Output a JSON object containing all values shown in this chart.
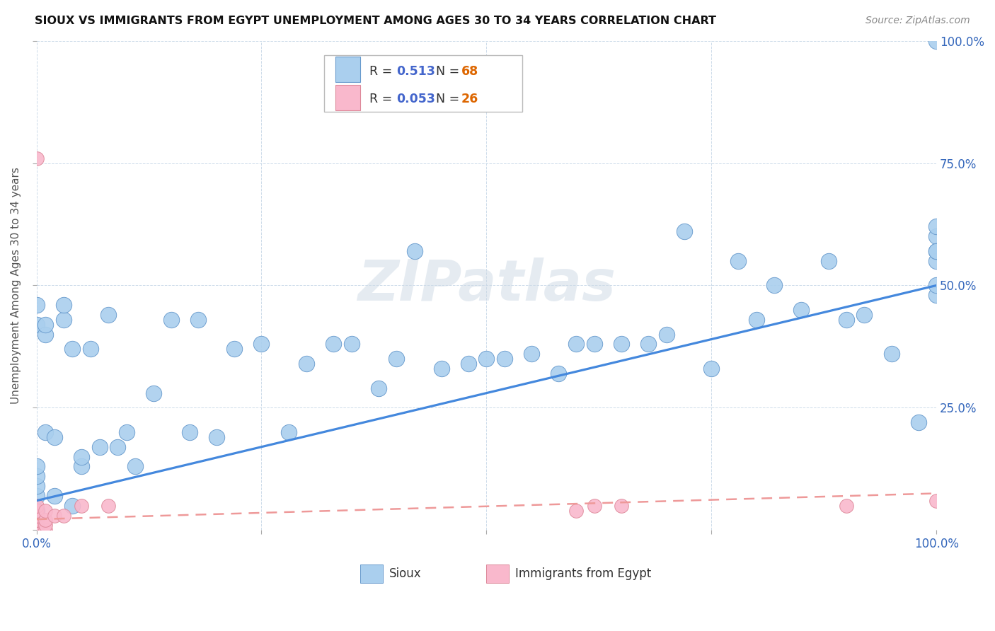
{
  "title": "SIOUX VS IMMIGRANTS FROM EGYPT UNEMPLOYMENT AMONG AGES 30 TO 34 YEARS CORRELATION CHART",
  "source": "Source: ZipAtlas.com",
  "ylabel": "Unemployment Among Ages 30 to 34 years",
  "legend_label1": "Sioux",
  "legend_label2": "Immigrants from Egypt",
  "r1": "0.513",
  "n1": "68",
  "r2": "0.053",
  "n2": "26",
  "watermark": "ZIPatlas",
  "sioux_color": "#aacfee",
  "egypt_color": "#f9b8cc",
  "sioux_edge_color": "#6699cc",
  "egypt_edge_color": "#dd8899",
  "sioux_line_color": "#4488dd",
  "egypt_line_color": "#ee9999",
  "r_text_color": "#4466cc",
  "n_text_color": "#dd6600",
  "sioux_x": [
    0.0,
    0.0,
    0.0,
    0.0,
    0.0,
    0.0,
    0.0,
    0.01,
    0.01,
    0.01,
    0.02,
    0.02,
    0.03,
    0.03,
    0.04,
    0.04,
    0.05,
    0.05,
    0.06,
    0.07,
    0.08,
    0.09,
    0.1,
    0.11,
    0.13,
    0.15,
    0.17,
    0.18,
    0.2,
    0.22,
    0.25,
    0.28,
    0.3,
    0.33,
    0.35,
    0.38,
    0.4,
    0.42,
    0.45,
    0.48,
    0.5,
    0.52,
    0.55,
    0.58,
    0.6,
    0.62,
    0.65,
    0.68,
    0.7,
    0.72,
    0.75,
    0.78,
    0.8,
    0.82,
    0.85,
    0.88,
    0.9,
    0.92,
    0.95,
    0.98,
    1.0,
    1.0,
    1.0,
    1.0,
    1.0,
    1.0,
    1.0,
    1.0
  ],
  "sioux_y": [
    0.04,
    0.07,
    0.09,
    0.11,
    0.13,
    0.42,
    0.46,
    0.2,
    0.4,
    0.42,
    0.07,
    0.19,
    0.43,
    0.46,
    0.05,
    0.37,
    0.13,
    0.15,
    0.37,
    0.17,
    0.44,
    0.17,
    0.2,
    0.13,
    0.28,
    0.43,
    0.2,
    0.43,
    0.19,
    0.37,
    0.38,
    0.2,
    0.34,
    0.38,
    0.38,
    0.29,
    0.35,
    0.57,
    0.33,
    0.34,
    0.35,
    0.35,
    0.36,
    0.32,
    0.38,
    0.38,
    0.38,
    0.38,
    0.4,
    0.61,
    0.33,
    0.55,
    0.43,
    0.5,
    0.45,
    0.55,
    0.43,
    0.44,
    0.36,
    0.22,
    0.48,
    0.55,
    0.6,
    0.62,
    0.57,
    0.5,
    1.0,
    0.57
  ],
  "egypt_x": [
    0.0,
    0.0,
    0.0,
    0.0,
    0.0,
    0.0,
    0.0,
    0.0,
    0.0,
    0.0,
    0.0,
    0.0,
    0.0,
    0.01,
    0.01,
    0.01,
    0.01,
    0.02,
    0.03,
    0.05,
    0.08,
    0.6,
    0.62,
    0.65,
    0.9,
    1.0
  ],
  "egypt_y": [
    0.0,
    0.0,
    0.0,
    0.01,
    0.01,
    0.02,
    0.02,
    0.03,
    0.03,
    0.04,
    0.04,
    0.05,
    0.76,
    0.0,
    0.01,
    0.02,
    0.04,
    0.03,
    0.03,
    0.05,
    0.05,
    0.04,
    0.05,
    0.05,
    0.05,
    0.06
  ],
  "sioux_line_x": [
    0.0,
    1.0
  ],
  "sioux_line_y": [
    0.06,
    0.5
  ],
  "egypt_line_x": [
    0.0,
    1.0
  ],
  "egypt_line_y": [
    0.022,
    0.075
  ],
  "xlim": [
    0.0,
    1.0
  ],
  "ylim": [
    0.0,
    1.0
  ],
  "yticks": [
    0.0,
    0.25,
    0.5,
    0.75,
    1.0
  ],
  "ytick_labels": [
    "",
    "25.0%",
    "50.0%",
    "75.0%",
    "100.0%"
  ],
  "xticks": [
    0.0,
    0.25,
    0.5,
    0.75,
    1.0
  ],
  "xtick_labels_left": "0.0%",
  "xtick_labels_right": "100.0%"
}
